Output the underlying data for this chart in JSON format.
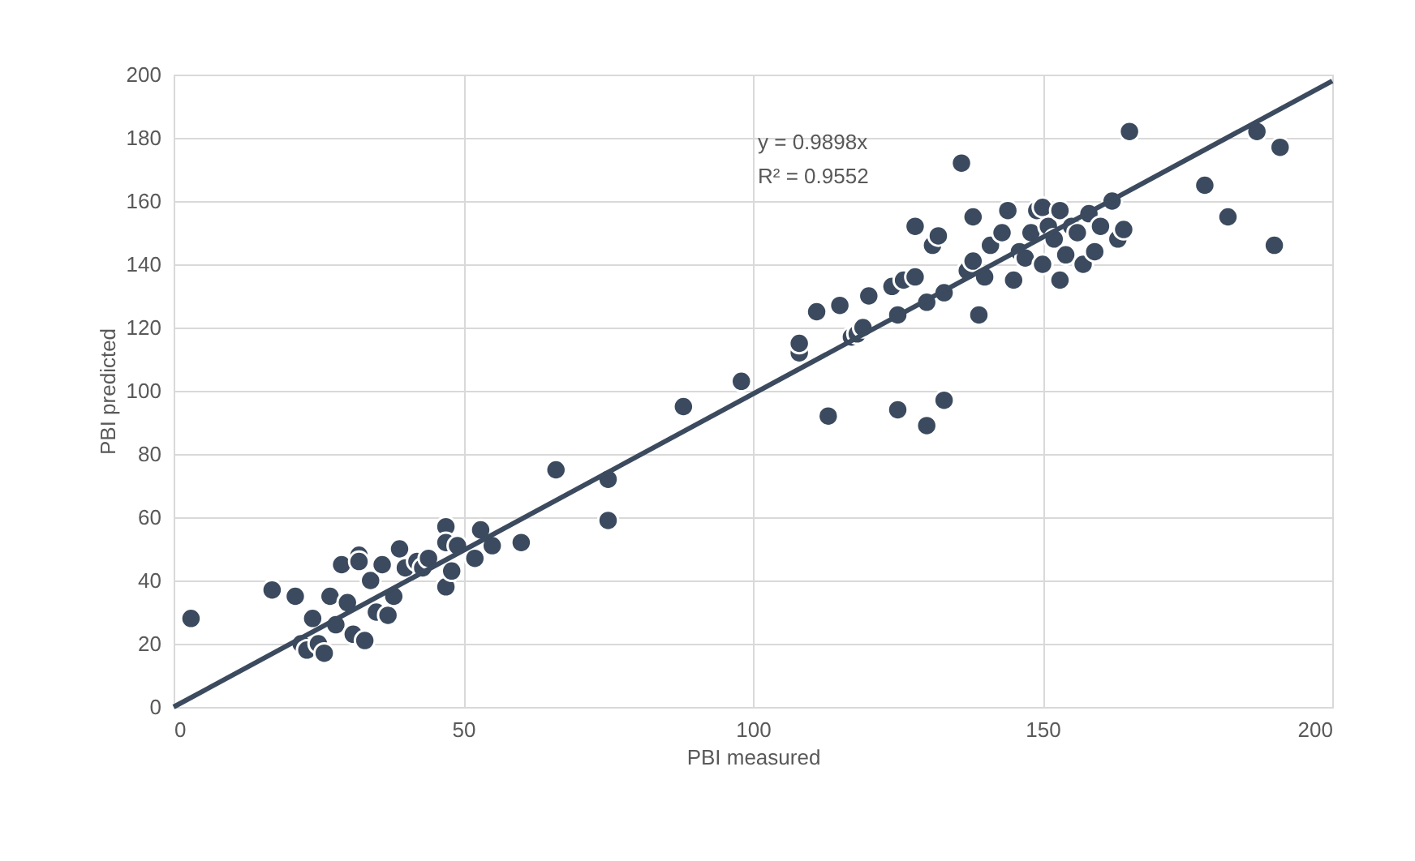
{
  "chart_data": {
    "type": "scatter",
    "xlabel": "PBI measured",
    "ylabel": "PBI predicted",
    "xlim": [
      0,
      200
    ],
    "ylim": [
      0,
      200
    ],
    "xticks": [
      0,
      50,
      100,
      150,
      200
    ],
    "yticks": [
      0,
      20,
      40,
      60,
      80,
      100,
      120,
      140,
      160,
      180,
      200
    ],
    "grid": true,
    "annotations": [
      "y = 0.9898x",
      "R² = 0.9552"
    ],
    "series": [
      {
        "color": "#3b4a5e",
        "marker": "circle",
        "x": [
          3,
          17,
          21,
          22,
          23,
          24,
          25,
          26,
          27,
          28,
          29,
          30,
          31,
          32,
          32,
          33,
          34,
          35,
          36,
          37,
          38,
          39,
          40,
          42,
          43,
          44,
          47,
          47,
          47,
          48,
          49,
          52,
          53,
          55,
          60,
          66,
          75,
          75,
          88,
          98,
          108,
          108,
          111,
          113,
          115,
          117,
          118,
          119,
          120,
          124,
          125,
          125,
          126,
          128,
          128,
          130,
          130,
          131,
          132,
          133,
          133,
          136,
          137,
          138,
          138,
          139,
          140,
          141,
          143,
          144,
          145,
          146,
          147,
          148,
          149,
          150,
          150,
          151,
          152,
          153,
          153,
          154,
          155,
          156,
          157,
          158,
          159,
          160,
          162,
          163,
          164,
          165,
          178,
          182,
          187,
          190,
          191
        ],
        "values": [
          28,
          37,
          35,
          20,
          18,
          28,
          20,
          17,
          35,
          26,
          45,
          33,
          23,
          48,
          46,
          21,
          40,
          30,
          45,
          29,
          35,
          50,
          44,
          46,
          44,
          47,
          57,
          52,
          38,
          43,
          51,
          47,
          56,
          51,
          52,
          75,
          72,
          59,
          95,
          103,
          112,
          115,
          125,
          92,
          127,
          117,
          118,
          120,
          130,
          133,
          124,
          94,
          135,
          136,
          152,
          128,
          89,
          146,
          149,
          131,
          97,
          172,
          138,
          141,
          155,
          124,
          136,
          146,
          150,
          157,
          135,
          144,
          142,
          150,
          157,
          158,
          140,
          152,
          148,
          135,
          157,
          143,
          152,
          150,
          140,
          156,
          144,
          152,
          160,
          148,
          151,
          182,
          165,
          155,
          182,
          146,
          177
        ]
      },
      {
        "type": "line",
        "color": "#3b4a5e",
        "line_style": "solid",
        "x": [
          0,
          200
        ],
        "values": [
          0,
          198
        ]
      }
    ]
  }
}
